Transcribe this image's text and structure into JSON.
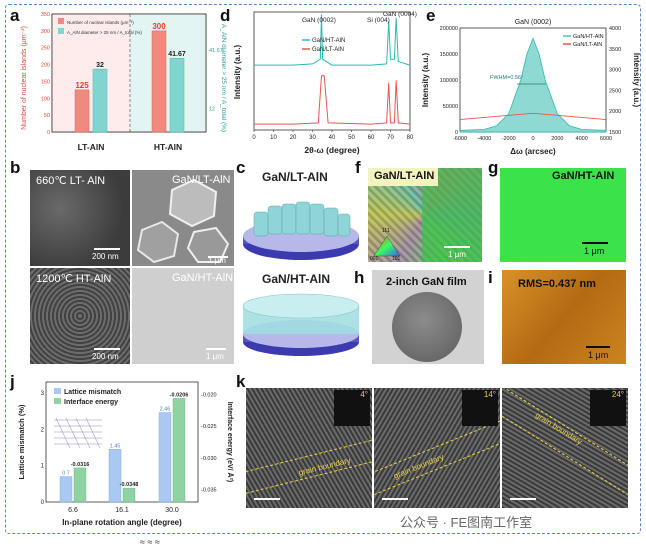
{
  "figure": {
    "watermark": "公众号 · FE图南工作室",
    "bottom_strip": "≈ ≈ ≈"
  },
  "panels": {
    "a": {
      "label": "a"
    },
    "b": {
      "label": "b",
      "images": [
        {
          "text": "660℃ LT- AlN",
          "scale": "200 nm"
        },
        {
          "text": "GaN/LT-AlN",
          "scale": "1 μm"
        },
        {
          "text": "1200℃ HT-AlN",
          "scale": "200 nm"
        },
        {
          "text": "GaN/HT-AlN",
          "scale": "1 μm"
        }
      ]
    },
    "c": {
      "label": "c",
      "titles": [
        "GaN/LT-AlN",
        "GaN/HT-AlN"
      ]
    },
    "d": {
      "label": "d"
    },
    "e": {
      "label": "e"
    },
    "f": {
      "label": "f",
      "title": "GaN/LT-AlN",
      "scale": "1 μm",
      "ipf": [
        "111",
        "001",
        "101"
      ]
    },
    "g": {
      "label": "g",
      "title": "GaN/HT-AlN",
      "scale": "1 μm"
    },
    "h": {
      "label": "h",
      "title": "2-inch GaN film"
    },
    "i": {
      "label": "i",
      "title": "RMS=0.437 nm",
      "scale": "1 μm"
    },
    "j": {
      "label": "j"
    },
    "k": {
      "label": "k",
      "images": [
        {
          "angle": "4°",
          "boundary": "grain boundary",
          "scale": "2 nm"
        },
        {
          "angle": "14°",
          "boundary": "grain boundary",
          "scale": "2 nm"
        },
        {
          "angle": "24°",
          "boundary": "grain boundary",
          "scale": "2 nm"
        }
      ]
    }
  },
  "chart_data": [
    {
      "id": "a",
      "type": "bar",
      "categories": [
        "LT-AlN",
        "HT-AlN"
      ],
      "series": [
        {
          "name": "Number of nuclear islands (μm⁻²)",
          "values": [
            125,
            300
          ],
          "color": "#f08a7e"
        },
        {
          "name": "A_AlN diameter > 25 nm / A_total (%)",
          "values": [
            32,
            41.67
          ],
          "color": "#7fd6cf"
        }
      ],
      "ylabel": "Number of nuclear islands (μm⁻²)",
      "y2label": "A_AlN diameter > 25 nm / A_total (%)",
      "yticks": [
        0,
        50,
        100,
        150,
        200,
        250,
        300,
        350
      ],
      "y2ticks": [
        12,
        41.67
      ],
      "ylim": [
        0,
        350
      ],
      "legend": [
        "Number of nuclear islands (μm⁻²)",
        "A_AlN diameter > 25 nm / A_total (%)"
      ]
    },
    {
      "id": "d",
      "type": "line",
      "xlabel": "2θ-ω (degree)",
      "ylabel": "Intensity (a.u.)",
      "xlim": [
        0,
        80
      ],
      "xticks": [
        0,
        10,
        20,
        30,
        40,
        50,
        60,
        70,
        80
      ],
      "annotations": [
        "GaN (0002)",
        "Si (004)",
        "GaN (0004)"
      ],
      "series": [
        {
          "name": "GaN/HT-AlN",
          "color": "#2fb8b0",
          "x": [
            0,
            20,
            30,
            34,
            34.6,
            35.2,
            40,
            60,
            68,
            69.1,
            70,
            72,
            72.9,
            74,
            80
          ],
          "y": [
            0.55,
            0.55,
            0.56,
            0.6,
            0.98,
            0.6,
            0.55,
            0.55,
            0.56,
            0.92,
            0.6,
            0.6,
            0.95,
            0.58,
            0.55
          ]
        },
        {
          "name": "GaN/LT-AlN",
          "color": "#e8574a",
          "x": [
            0,
            20,
            33,
            34.6,
            36,
            38,
            60,
            68,
            69.1,
            70,
            72,
            72.9,
            74,
            80
          ],
          "y": [
            0.05,
            0.05,
            0.06,
            0.46,
            0.46,
            0.06,
            0.05,
            0.06,
            0.4,
            0.06,
            0.06,
            0.42,
            0.06,
            0.05
          ]
        }
      ]
    },
    {
      "id": "e",
      "type": "area",
      "title": "GaN (0002)",
      "xlabel": "Δω (arcsec)",
      "ylabel": "Intensity (a.u.)",
      "y2label": "Intensity (a.u.)",
      "xlim": [
        -6000,
        6000
      ],
      "xticks": [
        -6000,
        -4000,
        -2000,
        0,
        2000,
        4000,
        6000
      ],
      "ylim": [
        0,
        200000
      ],
      "yticks": [
        0,
        50000,
        100000,
        150000,
        200000
      ],
      "y2lim": [
        1500,
        4000
      ],
      "y2ticks": [
        1500,
        2000,
        2500,
        3000,
        3500,
        4000
      ],
      "annotation": "FWHM=0.56°",
      "series": [
        {
          "name": "GaN/HT-AlN",
          "color": "#4ec2bb",
          "x": [
            -6000,
            -4000,
            -3000,
            -2000,
            -1000,
            -500,
            0,
            500,
            1000,
            2000,
            3000,
            4000,
            6000
          ],
          "y": [
            3000,
            5000,
            12000,
            35000,
            100000,
            150000,
            180000,
            150000,
            100000,
            35000,
            12000,
            5000,
            3000
          ]
        },
        {
          "name": "GaN/LT-AlN",
          "color": "#e8574a",
          "axis": "right",
          "x": [
            -6000,
            -4000,
            -2000,
            0,
            2000,
            4000,
            6000
          ],
          "y": [
            1800,
            1850,
            1900,
            1950,
            1900,
            1850,
            1800
          ]
        }
      ]
    },
    {
      "id": "j",
      "type": "bar",
      "categories": [
        "6.6",
        "16.1",
        "30.0"
      ],
      "xlabel": "In-plane rotation angle (degree)",
      "ylabel": "Lattice mismatch (%)",
      "y2label": "Interface energy (eV/ Å²)",
      "yticks": [
        0,
        1,
        2,
        3
      ],
      "y2ticks": [
        -0.02,
        -0.025,
        -0.03,
        -0.035
      ],
      "series": [
        {
          "name": "Lattice mismatch",
          "values": [
            0.7,
            1.45,
            2.46
          ],
          "color": "#a9c8f2"
        },
        {
          "name": "Interface energy",
          "values": [
            -0.0316,
            -0.0348,
            -0.0206
          ],
          "color": "#8fd3a3"
        }
      ],
      "legend": [
        "Lattice mismatch",
        "Interface energy"
      ]
    }
  ]
}
